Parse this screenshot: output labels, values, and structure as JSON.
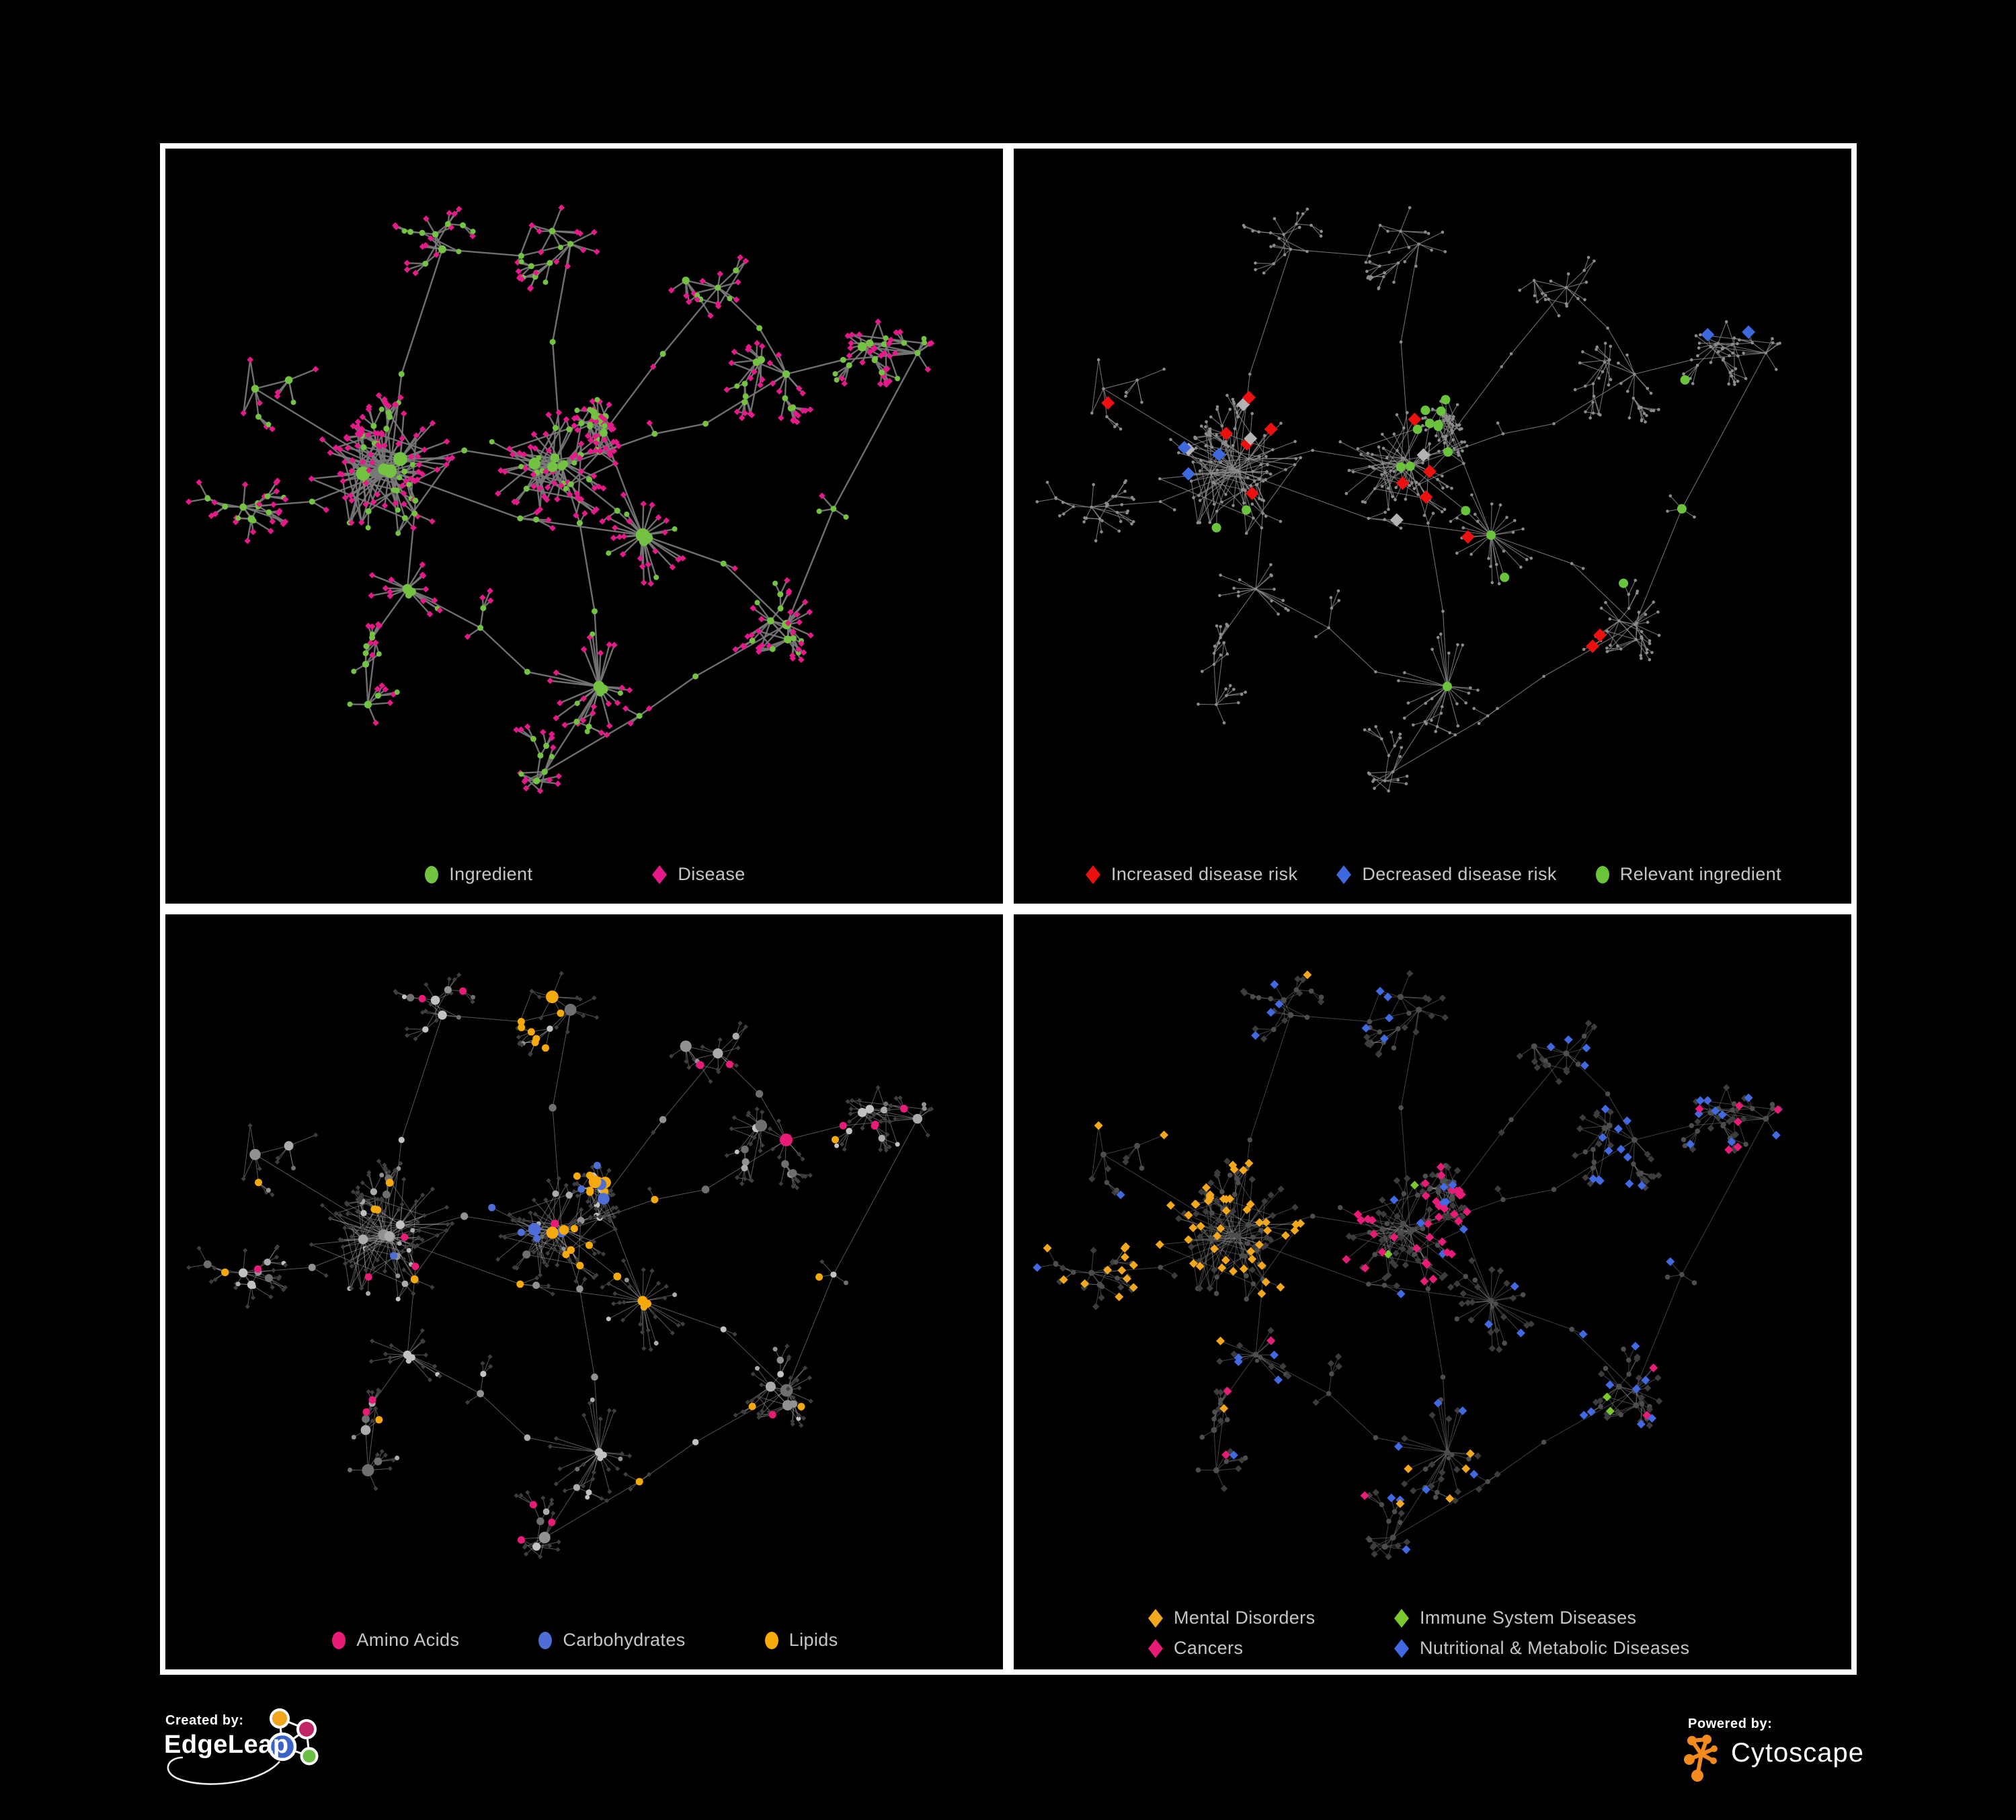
{
  "poster": {
    "background": "#000000",
    "panel_border": "#ffffff",
    "legend_text_color": "#c6c6c6"
  },
  "panels": [
    {
      "id": "ingredients-diseases",
      "legend": [
        {
          "label": "Ingredient",
          "shape": "circle",
          "color": "#74C241"
        },
        {
          "label": "Disease",
          "shape": "diamond",
          "color": "#E6198A"
        }
      ],
      "palette": {
        "circle": "#74C241",
        "diamond": "#E6198A",
        "edge": "#787878"
      }
    },
    {
      "id": "disease-risk",
      "legend": [
        {
          "label": "Increased disease risk",
          "shape": "diamond",
          "color": "#EC1010"
        },
        {
          "label": "Decreased disease risk",
          "shape": "diamond",
          "color": "#3E68DE"
        },
        {
          "label": "Relevant ingredient",
          "shape": "circle",
          "color": "#69C43C"
        }
      ],
      "palette": {
        "red": "#EC1010",
        "blue": "#3E68DE",
        "silver": "#B3B3B3",
        "green": "#69C43C",
        "base": "#8C8C8C",
        "edge": "#8A8A8A"
      }
    },
    {
      "id": "compound-classes",
      "legend": [
        {
          "label": "Amino Acids",
          "shape": "circle",
          "color": "#E81C77"
        },
        {
          "label": "Carbohydrates",
          "shape": "circle",
          "color": "#4E6ED6"
        },
        {
          "label": "Lipids",
          "shape": "circle",
          "color": "#F6A90B"
        }
      ],
      "palette": {
        "amino": "#E81C77",
        "carb": "#4E6ED6",
        "lipid": "#F6A90B",
        "diamond": "#3E3E3E",
        "edge": "#ABABAB",
        "grays": [
          "#C2C2C2",
          "#ABABAB",
          "#919191",
          "#6F6F6F"
        ]
      }
    },
    {
      "id": "disease-categories",
      "legend": [
        {
          "label": "Mental Disorders",
          "shape": "diamond",
          "color": "#F2A71C"
        },
        {
          "label": "Immune System Diseases",
          "shape": "diamond",
          "color": "#7CC72E"
        },
        {
          "label": "Cancers",
          "shape": "diamond",
          "color": "#E81C77"
        },
        {
          "label": "Nutritional & Metabolic Diseases",
          "shape": "diamond",
          "color": "#4169E1"
        }
      ],
      "legend_columns": 2,
      "palette": {
        "mental": "#F2A71C",
        "immune": "#7CC72E",
        "cancer": "#E81C77",
        "nutri": "#4169E1",
        "diamond": "#3C3C3C",
        "circle": "#4D4D4D",
        "edge": "#9B9B9B"
      }
    }
  ],
  "footer": {
    "created_by": "Created by:",
    "creator": "EdgeLeap",
    "powered_by": "Powered by:",
    "engine": "Cytoscape",
    "edgeleap_logo_colors": {
      "blue": "#3A63C8",
      "orange": "#F2A51F",
      "magenta": "#C02568",
      "green": "#6CBE45"
    },
    "cytoscape_logo_color": "#F28A1D"
  }
}
